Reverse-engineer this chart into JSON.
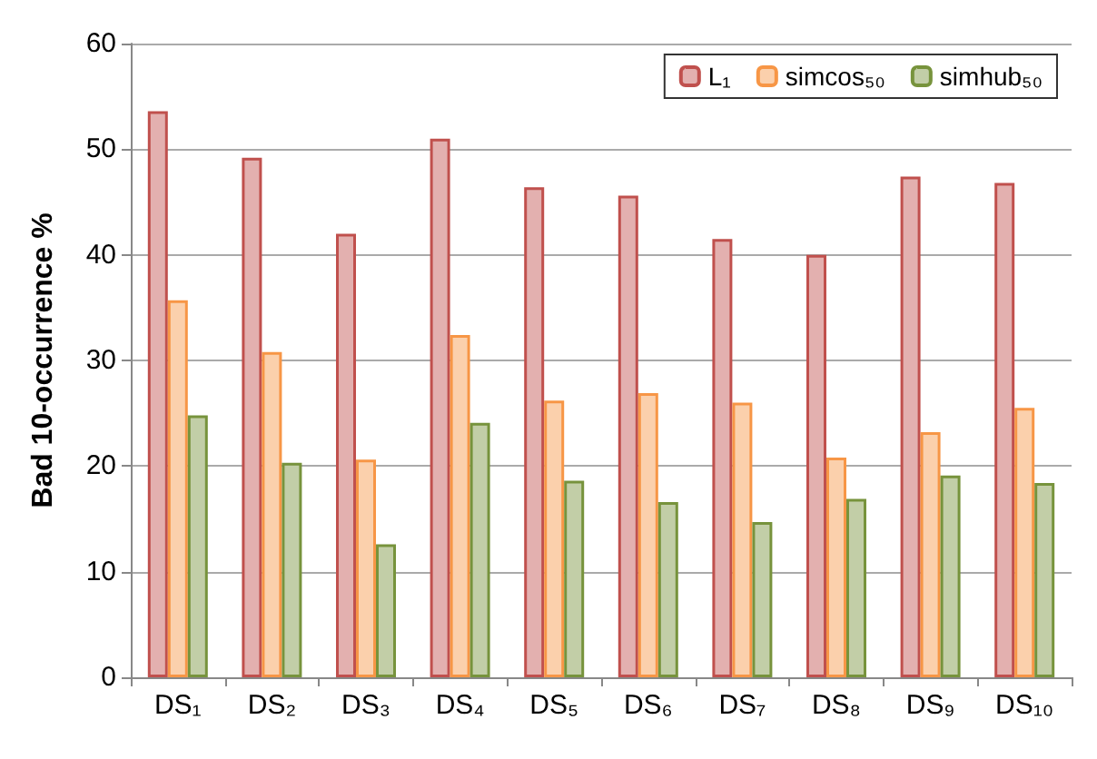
{
  "chart_data": {
    "type": "bar",
    "ylabel": "Bad 10-occurrence %",
    "categories": [
      "DS₁",
      "DS₂",
      "DS₃",
      "DS₄",
      "DS₅",
      "DS₆",
      "DS₇",
      "DS₈",
      "DS₉",
      "DS₁₀"
    ],
    "series": [
      {
        "name": "L₁",
        "color": "#c0504d",
        "values": [
          53.6,
          49.2,
          42,
          51,
          46.4,
          45.6,
          41.5,
          40,
          47.4,
          46.8
        ]
      },
      {
        "name": "simcos₅₀",
        "color": "#f79646",
        "values": [
          35.7,
          30.8,
          20.6,
          32.4,
          26.2,
          26.9,
          26,
          20.8,
          23.2,
          25.5
        ]
      },
      {
        "name": "simhub₅₀",
        "color": "#77933c",
        "values": [
          24.8,
          20.3,
          12.6,
          24.1,
          18.6,
          16.6,
          14.7,
          16.9,
          19.1,
          18.4
        ]
      }
    ],
    "ylim": [
      0,
      60
    ],
    "yticks": [
      0,
      10,
      20,
      30,
      40,
      50,
      60
    ],
    "grid": "y",
    "legend": "top right"
  }
}
